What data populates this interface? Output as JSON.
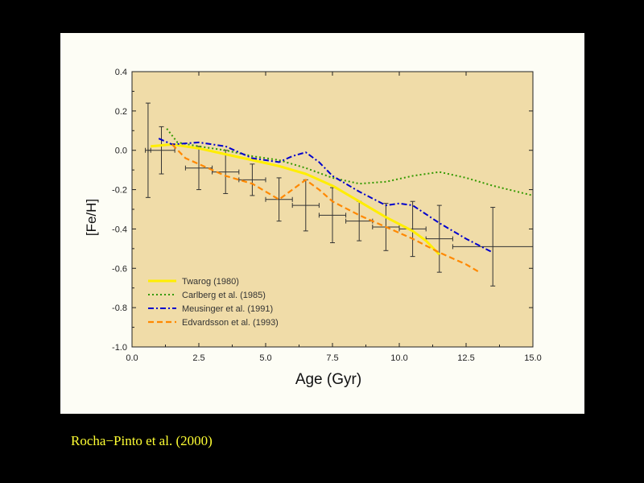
{
  "caption": "Rocha−Pinto et al. (2000)",
  "chart_data": {
    "type": "line",
    "xlabel": "Age (Gyr)",
    "ylabel": "[Fe/H]",
    "xlim": [
      0,
      15
    ],
    "ylim": [
      -1.0,
      0.4
    ],
    "x_ticks": [
      "0.0",
      "2.5",
      "5.0",
      "7.5",
      "10.0",
      "12.5",
      "15.0"
    ],
    "y_ticks": [
      "0.4",
      "0.2",
      "0.0",
      "-0.2",
      "-0.4",
      "-0.6",
      "-0.8",
      "-1.0"
    ],
    "grid": false,
    "legend_position": "bottom-left",
    "colors": {
      "plot_bg": "#f0dca8",
      "panel_bg": "#fdfdf5"
    },
    "series": [
      {
        "name": "Twarog (1980)",
        "color": "#ffee00",
        "style": "solid",
        "x": [
          0.7,
          1.5,
          2.5,
          3.5,
          4.5,
          5.5,
          6.5,
          7.5,
          8.5,
          9.5,
          10.5,
          11.0,
          11.5
        ],
        "y": [
          0.02,
          0.03,
          0.01,
          -0.02,
          -0.05,
          -0.08,
          -0.12,
          -0.18,
          -0.26,
          -0.34,
          -0.41,
          -0.46,
          -0.53
        ]
      },
      {
        "name": "Carlberg et al. (1985)",
        "color": "#339900",
        "style": "dotted",
        "x": [
          1.3,
          1.7,
          2.5,
          3.5,
          4.5,
          5.5,
          6.5,
          7.5,
          8.5,
          9.5,
          10.5,
          11.5,
          12.5,
          13.5,
          15.0
        ],
        "y": [
          0.11,
          0.04,
          0.02,
          0.0,
          -0.03,
          -0.05,
          -0.09,
          -0.14,
          -0.17,
          -0.16,
          -0.13,
          -0.11,
          -0.14,
          -0.18,
          -0.23
        ]
      },
      {
        "name": "Meusinger et al. (1991)",
        "color": "#0000cc",
        "style": "dashdot",
        "x": [
          1.0,
          1.5,
          2.5,
          3.5,
          4.5,
          5.5,
          6.0,
          6.5,
          7.0,
          7.5,
          8.5,
          9.5,
          10.0,
          10.5,
          11.5,
          12.5,
          13.5
        ],
        "y": [
          0.06,
          0.03,
          0.04,
          0.02,
          -0.04,
          -0.06,
          -0.03,
          -0.01,
          -0.06,
          -0.13,
          -0.21,
          -0.28,
          -0.27,
          -0.28,
          -0.37,
          -0.45,
          -0.52
        ]
      },
      {
        "name": "Edvardsson et al. (1993)",
        "color": "#ff8800",
        "style": "dashed",
        "x": [
          1.5,
          2.0,
          2.5,
          3.0,
          3.5,
          4.5,
          5.5,
          6.0,
          6.5,
          7.0,
          7.5,
          8.5,
          9.5,
          10.5,
          11.5,
          12.5,
          13.0
        ],
        "y": [
          0.03,
          -0.04,
          -0.07,
          -0.1,
          -0.13,
          -0.17,
          -0.25,
          -0.2,
          -0.15,
          -0.2,
          -0.26,
          -0.33,
          -0.39,
          -0.45,
          -0.52,
          -0.58,
          -0.62
        ]
      }
    ],
    "error_bars": [
      {
        "x": 0.6,
        "y": 0.0,
        "xerr": 0.1,
        "yerr": 0.24
      },
      {
        "x": 1.1,
        "y": 0.0,
        "xerr": 0.5,
        "yerr": 0.12
      },
      {
        "x": 2.5,
        "y": -0.09,
        "xerr": 0.5,
        "yerr": 0.11
      },
      {
        "x": 3.5,
        "y": -0.11,
        "xerr": 0.5,
        "yerr": 0.11
      },
      {
        "x": 4.5,
        "y": -0.15,
        "xerr": 0.5,
        "yerr": 0.08
      },
      {
        "x": 5.5,
        "y": -0.25,
        "xerr": 0.5,
        "yerr": 0.11
      },
      {
        "x": 6.5,
        "y": -0.28,
        "xerr": 0.5,
        "yerr": 0.13
      },
      {
        "x": 7.5,
        "y": -0.33,
        "xerr": 0.5,
        "yerr": 0.14
      },
      {
        "x": 8.5,
        "y": -0.36,
        "xerr": 0.5,
        "yerr": 0.1
      },
      {
        "x": 9.5,
        "y": -0.39,
        "xerr": 0.5,
        "yerr": 0.12
      },
      {
        "x": 10.5,
        "y": -0.4,
        "xerr": 0.5,
        "yerr": 0.14
      },
      {
        "x": 11.5,
        "y": -0.45,
        "xerr": 0.5,
        "yerr": 0.17
      },
      {
        "x": 13.5,
        "y": -0.49,
        "xerr": 1.5,
        "yerr": 0.2
      }
    ]
  }
}
